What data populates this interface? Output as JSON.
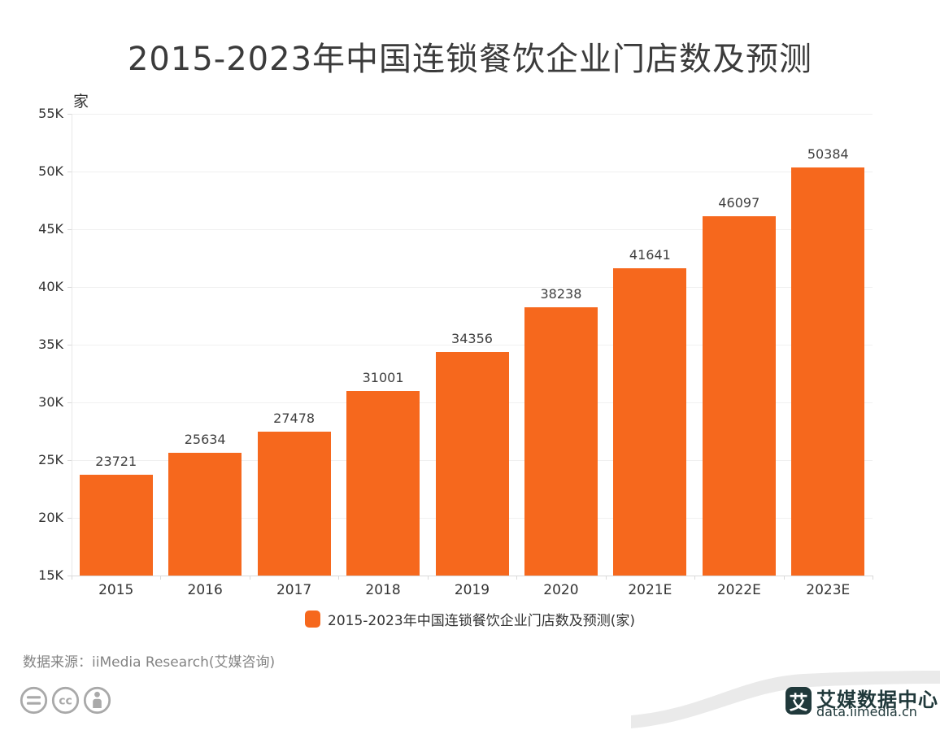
{
  "title": "2015-2023年中国连锁餐饮企业门店数及预测",
  "y_axis_unit": "家",
  "chart_data": {
    "type": "bar",
    "categories": [
      "2015",
      "2016",
      "2017",
      "2018",
      "2019",
      "2020",
      "2021E",
      "2022E",
      "2023E"
    ],
    "values": [
      23721,
      25634,
      27478,
      31001,
      34356,
      38238,
      41641,
      46097,
      50384
    ],
    "title": "2015-2023年中国连锁餐饮企业门店数及预测",
    "xlabel": "",
    "ylabel": "家",
    "ylim": [
      15000,
      55000
    ],
    "ytick_step": 5000,
    "ytick_labels": [
      "15K",
      "20K",
      "25K",
      "30K",
      "35K",
      "40K",
      "45K",
      "50K",
      "55K"
    ],
    "grid": true,
    "legend_position": "bottom",
    "bar_color": "#f6681d",
    "data_labels_shown": true
  },
  "legend": {
    "label": "2015-2023年中国连锁餐饮企业门店数及预测(家)",
    "marker_color": "#f6681d"
  },
  "source": {
    "label": "数据来源：iiMedia Research(艾媒咨询)"
  },
  "footer_icons": [
    {
      "name": "equals-license-icon"
    },
    {
      "name": "cc-license-icon"
    },
    {
      "name": "attribution-person-icon"
    }
  ],
  "branding": {
    "logo_glyph": "艾",
    "name": "艾媒数据中心",
    "url": "data.iimedia.cn",
    "color": "#20393b"
  },
  "colors": {
    "title_text": "#3b3b3b",
    "axis_text": "#333333",
    "grid_line": "#f0f0f0",
    "axis_line": "#d9d9d9",
    "source_text": "#848484",
    "cc_icon_gray": "#a9a9a9",
    "ribbon_gray": "#eaeaea"
  }
}
